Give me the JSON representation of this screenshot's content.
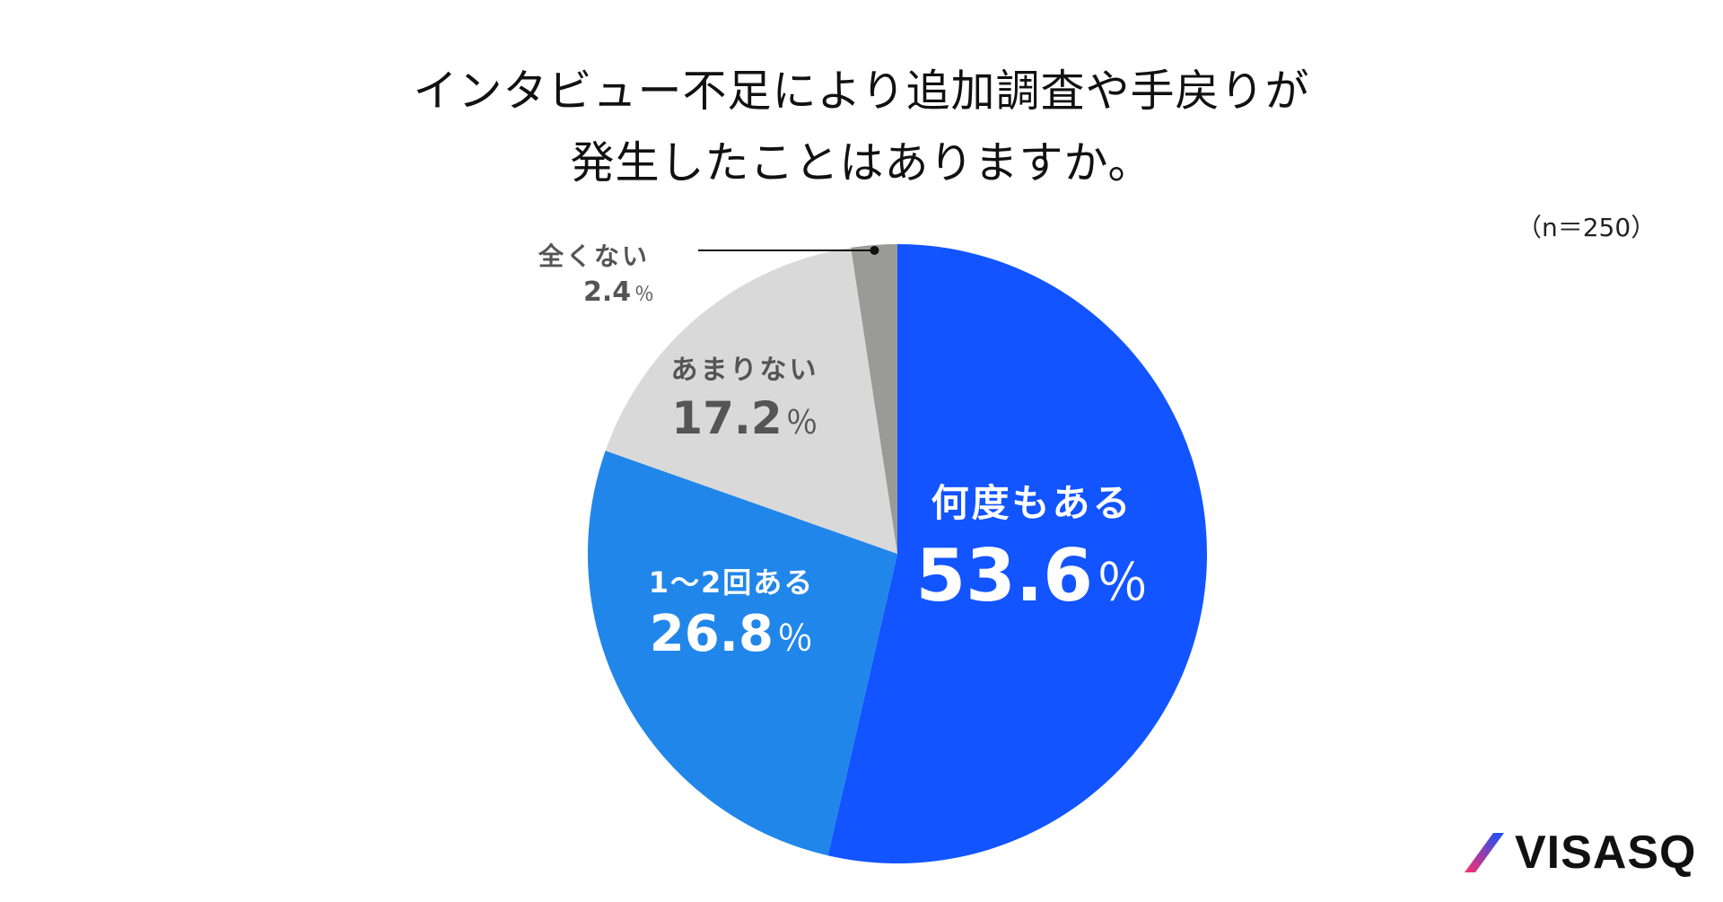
{
  "title": {
    "line1": "インタビュー不足により追加調査や手戻りが",
    "line2": "発生したことはありますか。"
  },
  "sample_size": "（n＝250）",
  "chart_data": {
    "type": "pie",
    "title": "インタビュー不足により追加調査や手戻りが発生したことはありますか。",
    "unit": "％",
    "slices": [
      {
        "label": "何度もある",
        "value": 53.6,
        "display": "53.6",
        "color": "#1254ff"
      },
      {
        "label": "1〜2回ある",
        "value": 26.8,
        "display": "26.8",
        "color": "#2186ea"
      },
      {
        "label": "あまりない",
        "value": 17.2,
        "display": "17.2",
        "color": "#d9d9d9"
      },
      {
        "label": "全くない",
        "value": 2.4,
        "display": "2.4",
        "color": "#9a9b98"
      }
    ]
  },
  "logo": {
    "text": "VISASQ",
    "colors": [
      "#1254ff",
      "#ff2e6b"
    ]
  }
}
